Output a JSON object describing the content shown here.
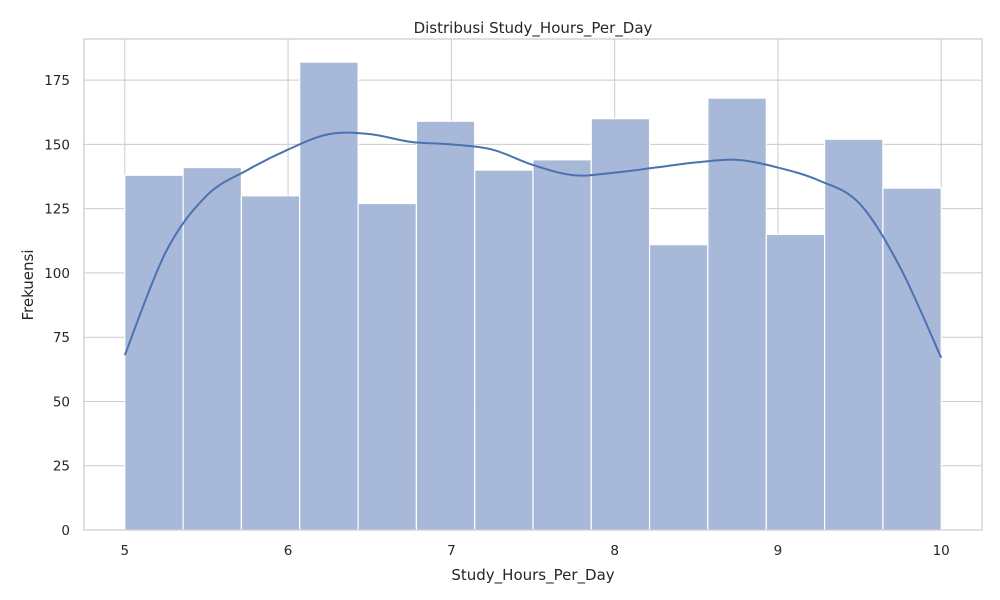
{
  "chart_data": {
    "type": "bar",
    "title": "Distribusi Study_Hours_Per_Day",
    "xlabel": "Study_Hours_Per_Day",
    "ylabel": "Frekuensi",
    "xlim": [
      4.75,
      10.25
    ],
    "ylim": [
      0,
      191
    ],
    "x_ticks": [
      5,
      6,
      7,
      8,
      9,
      10
    ],
    "y_ticks": [
      0,
      25,
      50,
      75,
      100,
      125,
      150,
      175
    ],
    "grid": true,
    "bins": {
      "edges": [
        5.0,
        5.357,
        5.714,
        6.071,
        6.429,
        6.786,
        7.143,
        7.5,
        7.857,
        8.214,
        8.571,
        8.929,
        9.286,
        9.643,
        10.0
      ],
      "counts": [
        138,
        141,
        130,
        182,
        127,
        159,
        140,
        144,
        160,
        111,
        168,
        115,
        152,
        133
      ]
    },
    "kde": {
      "x": [
        5.0,
        5.25,
        5.5,
        5.75,
        6.0,
        6.25,
        6.5,
        6.75,
        7.0,
        7.25,
        7.5,
        7.75,
        8.0,
        8.25,
        8.5,
        8.75,
        9.0,
        9.25,
        9.5,
        9.75,
        10.0
      ],
      "y": [
        68,
        108,
        130,
        140,
        148,
        154,
        154,
        151,
        150,
        148,
        142,
        138,
        139,
        141,
        143,
        144,
        141,
        136,
        127,
        102,
        67
      ]
    },
    "colors": {
      "bar_fill": "#a6b7d8",
      "kde_line": "#4c72b0",
      "grid": "#cccccc"
    }
  }
}
